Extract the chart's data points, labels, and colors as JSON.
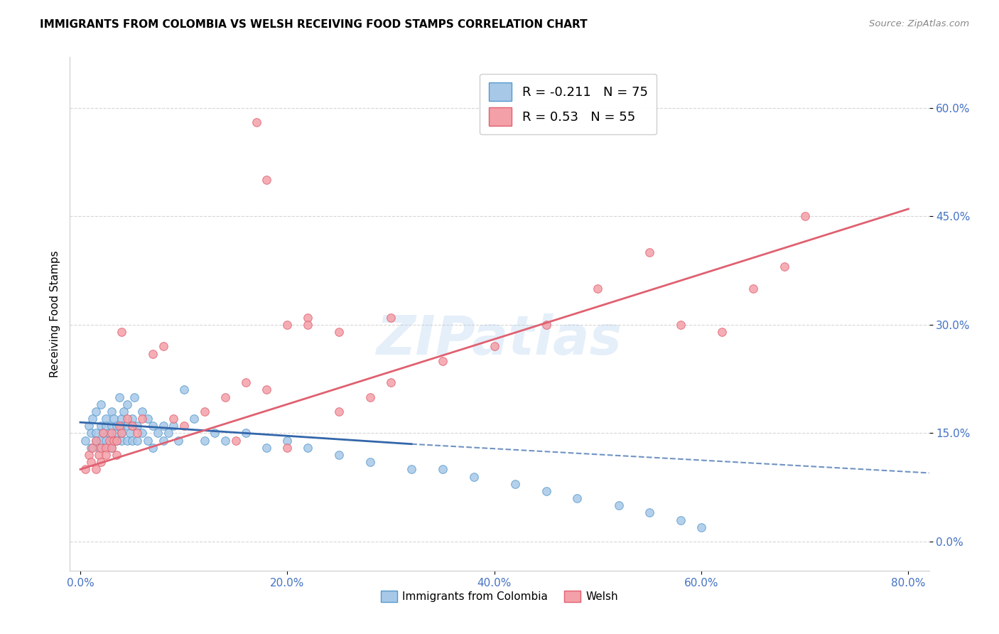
{
  "title": "IMMIGRANTS FROM COLOMBIA VS WELSH RECEIVING FOOD STAMPS CORRELATION CHART",
  "source": "Source: ZipAtlas.com",
  "xlabel_ticks": [
    "0.0%",
    "20.0%",
    "40.0%",
    "60.0%",
    "80.0%"
  ],
  "xlabel_tick_vals": [
    0.0,
    0.2,
    0.4,
    0.6,
    0.8
  ],
  "ylabel_label": "Receiving Food Stamps",
  "ylabel_ticks": [
    "0.0%",
    "15.0%",
    "30.0%",
    "45.0%",
    "60.0%"
  ],
  "ylabel_tick_vals": [
    0.0,
    0.15,
    0.3,
    0.45,
    0.6
  ],
  "xlim": [
    -0.01,
    0.82
  ],
  "ylim": [
    -0.04,
    0.67
  ],
  "colombia_R": -0.211,
  "colombia_N": 75,
  "welsh_R": 0.53,
  "welsh_N": 55,
  "colombia_color": "#a8c8e8",
  "welsh_color": "#f4a0a8",
  "colombia_edge": "#5599cc",
  "welsh_edge": "#e06070",
  "trendline_colombia_color": "#3366aa",
  "trendline_welsh_color": "#e06070",
  "legend_label_colombia": "Immigrants from Colombia",
  "legend_label_welsh": "Welsh",
  "watermark": "ZIPatlas",
  "colombia_scatter_x": [
    0.005,
    0.008,
    0.01,
    0.01,
    0.012,
    0.015,
    0.015,
    0.015,
    0.018,
    0.02,
    0.02,
    0.02,
    0.022,
    0.025,
    0.025,
    0.025,
    0.025,
    0.028,
    0.03,
    0.03,
    0.03,
    0.03,
    0.032,
    0.035,
    0.035,
    0.035,
    0.038,
    0.04,
    0.04,
    0.04,
    0.04,
    0.042,
    0.045,
    0.045,
    0.045,
    0.048,
    0.05,
    0.05,
    0.05,
    0.052,
    0.055,
    0.055,
    0.06,
    0.06,
    0.065,
    0.065,
    0.07,
    0.07,
    0.075,
    0.08,
    0.08,
    0.085,
    0.09,
    0.095,
    0.1,
    0.11,
    0.12,
    0.13,
    0.14,
    0.16,
    0.18,
    0.2,
    0.22,
    0.25,
    0.28,
    0.32,
    0.35,
    0.38,
    0.42,
    0.45,
    0.48,
    0.52,
    0.55,
    0.58,
    0.6
  ],
  "colombia_scatter_y": [
    0.14,
    0.16,
    0.15,
    0.13,
    0.17,
    0.15,
    0.14,
    0.18,
    0.13,
    0.16,
    0.14,
    0.19,
    0.15,
    0.17,
    0.14,
    0.16,
    0.13,
    0.15,
    0.16,
    0.14,
    0.18,
    0.13,
    0.17,
    0.15,
    0.14,
    0.16,
    0.2,
    0.17,
    0.15,
    0.14,
    0.16,
    0.18,
    0.16,
    0.14,
    0.19,
    0.15,
    0.17,
    0.14,
    0.16,
    0.2,
    0.16,
    0.14,
    0.18,
    0.15,
    0.17,
    0.14,
    0.16,
    0.13,
    0.15,
    0.16,
    0.14,
    0.15,
    0.16,
    0.14,
    0.21,
    0.17,
    0.14,
    0.15,
    0.14,
    0.15,
    0.13,
    0.14,
    0.13,
    0.12,
    0.11,
    0.1,
    0.1,
    0.09,
    0.08,
    0.07,
    0.06,
    0.05,
    0.04,
    0.03,
    0.02
  ],
  "welsh_scatter_x": [
    0.005,
    0.008,
    0.01,
    0.012,
    0.015,
    0.015,
    0.018,
    0.02,
    0.02,
    0.022,
    0.025,
    0.025,
    0.028,
    0.03,
    0.03,
    0.032,
    0.035,
    0.035,
    0.038,
    0.04,
    0.04,
    0.045,
    0.05,
    0.055,
    0.06,
    0.07,
    0.08,
    0.09,
    0.1,
    0.12,
    0.14,
    0.16,
    0.18,
    0.2,
    0.22,
    0.25,
    0.28,
    0.3,
    0.35,
    0.4,
    0.45,
    0.5,
    0.55,
    0.58,
    0.62,
    0.65,
    0.68,
    0.7,
    0.22,
    0.25,
    0.18,
    0.3,
    0.15,
    0.2,
    0.17
  ],
  "welsh_scatter_y": [
    0.1,
    0.12,
    0.11,
    0.13,
    0.1,
    0.14,
    0.12,
    0.13,
    0.11,
    0.15,
    0.13,
    0.12,
    0.14,
    0.13,
    0.15,
    0.14,
    0.12,
    0.14,
    0.16,
    0.15,
    0.29,
    0.17,
    0.16,
    0.15,
    0.17,
    0.26,
    0.27,
    0.17,
    0.16,
    0.18,
    0.2,
    0.22,
    0.21,
    0.3,
    0.31,
    0.18,
    0.2,
    0.22,
    0.25,
    0.27,
    0.3,
    0.35,
    0.4,
    0.3,
    0.29,
    0.35,
    0.38,
    0.45,
    0.3,
    0.29,
    0.5,
    0.31,
    0.14,
    0.13,
    0.58
  ]
}
